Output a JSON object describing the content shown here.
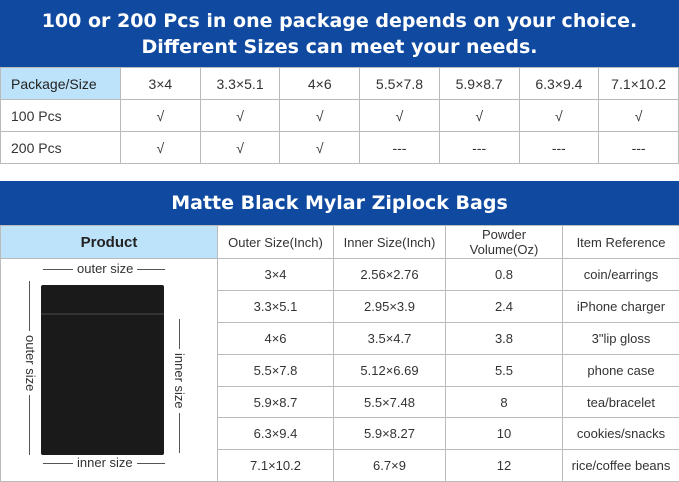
{
  "banner1": {
    "line1": "100 or 200 Pcs in one package depends on your choice.",
    "line2": "Different Sizes can meet your needs."
  },
  "package_table": {
    "header": "Package/Size",
    "sizes": [
      "3×4",
      "3.3×5.1",
      "4×6",
      "5.5×7.8",
      "5.9×8.7",
      "6.3×9.4",
      "7.1×10.2"
    ],
    "rows": [
      {
        "label": "100 Pcs",
        "cells": [
          "√",
          "√",
          "√",
          "√",
          "√",
          "√",
          "√"
        ]
      },
      {
        "label": "200 Pcs",
        "cells": [
          "√",
          "√",
          "√",
          "---",
          "---",
          "---",
          "---"
        ]
      }
    ]
  },
  "banner2": {
    "title": "Matte Black Mylar Ziplock Bags"
  },
  "spec_table": {
    "headers": [
      "Product",
      "Outer Size(Inch)",
      "Inner Size(Inch)",
      "Powder Volume(Oz)",
      "Item Reference"
    ],
    "rows": [
      [
        "3×4",
        "2.56×2.76",
        "0.8",
        "coin/earrings"
      ],
      [
        "3.3×5.1",
        "2.95×3.9",
        "2.4",
        "iPhone charger"
      ],
      [
        "4×6",
        "3.5×4.7",
        "3.8",
        "3\"lip gloss"
      ],
      [
        "5.5×7.8",
        "5.12×6.69",
        "5.5",
        "phone case"
      ],
      [
        "5.9×8.7",
        "5.5×7.48",
        "8",
        "tea/bracelet"
      ],
      [
        "6.3×9.4",
        "5.9×8.27",
        "10",
        "cookies/snacks"
      ],
      [
        "7.1×10.2",
        "6.7×9",
        "12",
        "rice/coffee beans"
      ]
    ]
  },
  "product_labels": {
    "outer_width": "outer size",
    "outer_height": "outer size",
    "inner_height": "inner size",
    "inner_width": "inner size"
  },
  "colors": {
    "banner": "#0f4aa0",
    "header_highlight": "#bde3fa"
  }
}
